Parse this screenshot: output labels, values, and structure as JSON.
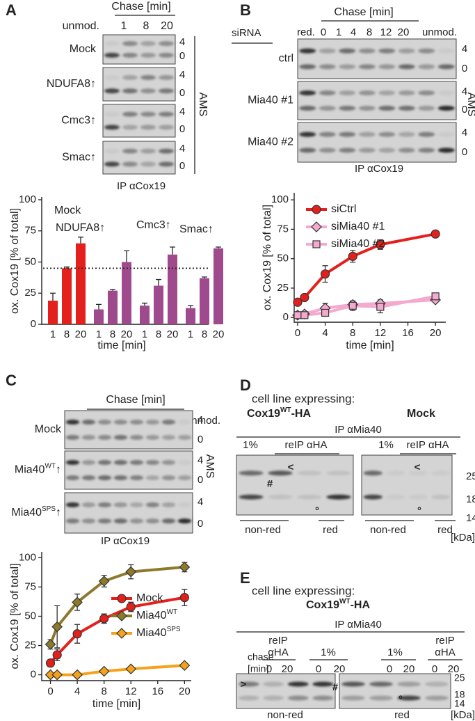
{
  "panels": {
    "A": {
      "letter": "A",
      "chase": "Chase [min]",
      "lanes": [
        "unmod.",
        1,
        8,
        20
      ],
      "rows": [
        {
          "base": "Mock"
        },
        {
          "base": "NDUFA8↑"
        },
        {
          "base": "Cmc3↑"
        },
        {
          "base": "Smac↑"
        }
      ],
      "markers": [
        4,
        0
      ],
      "ams": "AMS",
      "ip": "IP αCox19"
    },
    "B": {
      "letter": "B",
      "chase": "Chase [min]",
      "sirna": "siRNA",
      "lanes": [
        "red.",
        0,
        1,
        4,
        8,
        12,
        20,
        "unmod."
      ],
      "rows": [
        {
          "base": "ctrl"
        },
        {
          "base": "Mia40 #1"
        },
        {
          "base": "Mia40 #2"
        }
      ],
      "markers": [
        4,
        0
      ],
      "ams": "AMS",
      "ip": "IP αCox19"
    },
    "C": {
      "letter": "C",
      "chase": "Chase [min]",
      "lanes": [
        "red.",
        0,
        1,
        4,
        8,
        12,
        20,
        "unmod."
      ],
      "rows": [
        {
          "base": "Mock"
        },
        {
          "base": "Mia40",
          "sup": "WT",
          "suffix": "↑"
        },
        {
          "base": "Mia40",
          "sup": "SPS",
          "suffix": "↑"
        }
      ],
      "markers": [
        4,
        0
      ],
      "ams": "AMS",
      "ip": "IP αCox19"
    },
    "D": {
      "letter": "D",
      "heading": "cell line expressing:",
      "lines": [
        {
          "base": "Cox19",
          "sup": "WT",
          "suffix": "-HA"
        },
        {
          "base": "Mock"
        }
      ],
      "ip": "IP αMia40",
      "lanes": [
        "1%",
        "reIP αHA",
        "1%",
        "reIP αHA"
      ],
      "conditions": [
        "non-red",
        "red",
        "non-red",
        "red"
      ],
      "mw": [
        25,
        18,
        14
      ],
      "unit": "[kDa]",
      "symbols": [
        "<",
        "#",
        "°",
        "<",
        "°"
      ]
    },
    "E": {
      "letter": "E",
      "heading": "cell line expressing:",
      "lines": [
        {
          "base": "Cox19",
          "sup": "WT",
          "suffix": "-HA"
        }
      ],
      "ip": "IP αMia40",
      "reip": [
        "reIP",
        "αHA"
      ],
      "one_percent": "1%",
      "chase": [
        "chase",
        "[min]"
      ],
      "chase_values": [
        0,
        20,
        0,
        20,
        0,
        20,
        0,
        20
      ],
      "conditions": [
        "non-red",
        "red"
      ],
      "mw": [
        25,
        18,
        14
      ],
      "unit": "[kDa]",
      "symbols": [
        ">",
        "#",
        "°"
      ]
    }
  },
  "chart_data": [
    {
      "type": "bar",
      "y_label": "ox. Cox19 [% of total]",
      "x_label": "time [min]",
      "ylim": [
        0,
        100
      ],
      "yticks": [
        0,
        25,
        50,
        75,
        100
      ],
      "reference_line": 45,
      "groups": [
        {
          "name": "Mock",
          "color": "#e3201c",
          "categories": [
            "1",
            "8",
            "20"
          ],
          "values": [
            19,
            45,
            65
          ],
          "errors": [
            6,
            1,
            5
          ]
        },
        {
          "name": "NDUFA8↑",
          "color": "#a04a8e",
          "categories": [
            "1",
            "8",
            "20"
          ],
          "values": [
            12,
            27,
            50
          ],
          "errors": [
            4,
            1,
            9
          ]
        },
        {
          "name": "Cmc3↑",
          "color": "#a04a8e",
          "categories": [
            "1",
            "8",
            "20"
          ],
          "values": [
            15,
            31,
            56
          ],
          "errors": [
            2,
            5,
            6
          ]
        },
        {
          "name": "Smac↑",
          "color": "#a04a8e",
          "categories": [
            "1",
            "8",
            "20"
          ],
          "values": [
            13,
            37,
            61
          ],
          "errors": [
            2,
            1,
            1
          ]
        }
      ]
    },
    {
      "type": "line",
      "y_label": "ox. Cox19 [% of total]",
      "x_label": "time [min]",
      "x": [
        0,
        1,
        4,
        8,
        12,
        20
      ],
      "xlim": [
        -0.5,
        21.5
      ],
      "xticks": [
        0,
        4,
        8,
        12,
        16,
        20
      ],
      "ylim": [
        -4,
        106
      ],
      "yticks": [
        0,
        25,
        50,
        75,
        100
      ],
      "series": [
        {
          "name": "siCtrl",
          "color": "#e3201c",
          "marker": "circle",
          "values": [
            13,
            17,
            37,
            52,
            62,
            71
          ],
          "errors": [
            2,
            2,
            7,
            5,
            4,
            1
          ]
        },
        {
          "name": "siMia40 #1",
          "color": "#f4a9cf",
          "marker": "diamond",
          "values": [
            2,
            3,
            8,
            11,
            12,
            15
          ],
          "errors": [
            2,
            2,
            4,
            3,
            3,
            2
          ]
        },
        {
          "name": "siMia40 #2",
          "color": "#f4a9cf",
          "marker": "square",
          "values": [
            2,
            2,
            4,
            10,
            9,
            18
          ],
          "errors": [
            1,
            1,
            2,
            4,
            5,
            2
          ]
        }
      ]
    },
    {
      "type": "line",
      "y_label": "ox. Cox19 [% of total]",
      "x_label": "time [min]",
      "x": [
        0,
        1,
        4,
        8,
        12,
        20
      ],
      "xlim": [
        -1.3,
        21
      ],
      "xticks": [
        0,
        4,
        8,
        12,
        16,
        20
      ],
      "ylim": [
        -5,
        105
      ],
      "yticks": [
        0,
        25,
        50,
        75,
        100
      ],
      "series": [
        {
          "name": "Mock",
          "color": "#e3201c",
          "marker": "circle",
          "values": [
            10,
            17,
            35,
            48,
            58,
            66
          ],
          "errors": [
            3,
            5,
            8,
            4,
            4,
            7
          ]
        },
        {
          "name": "Mia40",
          "name_sup": "WT",
          "color": "#8c7a2c",
          "marker": "diamond",
          "values": [
            26,
            41,
            62,
            80,
            88,
            92
          ],
          "errors": [
            4,
            18,
            7,
            5,
            6,
            4
          ]
        },
        {
          "name": "Mia40",
          "name_sup": "SPS",
          "color": "#f5a21b",
          "marker": "diamond",
          "values": [
            0,
            0,
            0,
            3,
            5,
            8
          ],
          "errors": [
            1,
            1,
            1,
            2,
            1,
            2
          ]
        }
      ]
    }
  ]
}
